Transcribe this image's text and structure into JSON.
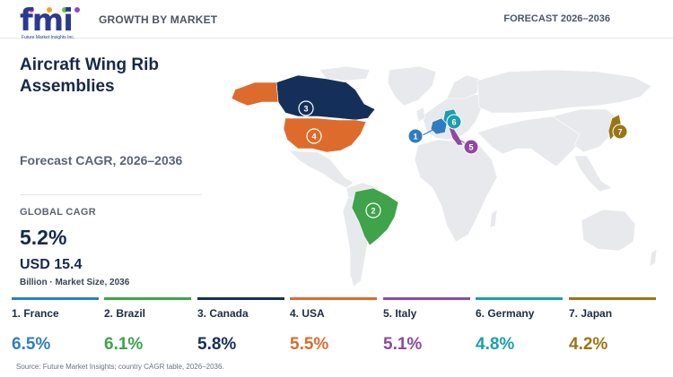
{
  "header": {
    "logo_text": "fmi",
    "logo_sub": "Future Market Insights Inc.",
    "left_label": "GROWTH BY MARKET",
    "right_label": "FORECAST 2026–2036"
  },
  "panel": {
    "title": "Aircraft Wing Rib Assemblies",
    "subtitle": "Forecast CAGR, 2026–2036",
    "global_cagr_label": "GLOBAL CAGR",
    "global_cagr_value": "5.2%",
    "market_size_value": "USD 15.4",
    "market_size_label": "Billion · Market Size, 2036"
  },
  "countries": [
    {
      "rank": "1",
      "name": "1. France",
      "cagr": "6.5%",
      "color": "#2f7dbf"
    },
    {
      "rank": "2",
      "name": "2. Brazil",
      "cagr": "6.1%",
      "color": "#3ea34a"
    },
    {
      "rank": "3",
      "name": "3. Canada",
      "cagr": "5.8%",
      "color": "#14305a"
    },
    {
      "rank": "4",
      "name": "4. USA",
      "cagr": "5.5%",
      "color": "#dd6b2c"
    },
    {
      "rank": "5",
      "name": "5. Italy",
      "cagr": "5.1%",
      "color": "#8e4aa0"
    },
    {
      "rank": "6",
      "name": "6. Germany",
      "cagr": "4.8%",
      "color": "#1aa0ad"
    },
    {
      "rank": "7",
      "name": "7. Japan",
      "cagr": "4.2%",
      "color": "#9a7516"
    }
  ],
  "source": "Source: Future Market Insights; country CAGR table, 2026–2036.",
  "colors": {
    "base_land": "#e7e9ec",
    "title": "#15294a",
    "muted": "#5b6472"
  }
}
